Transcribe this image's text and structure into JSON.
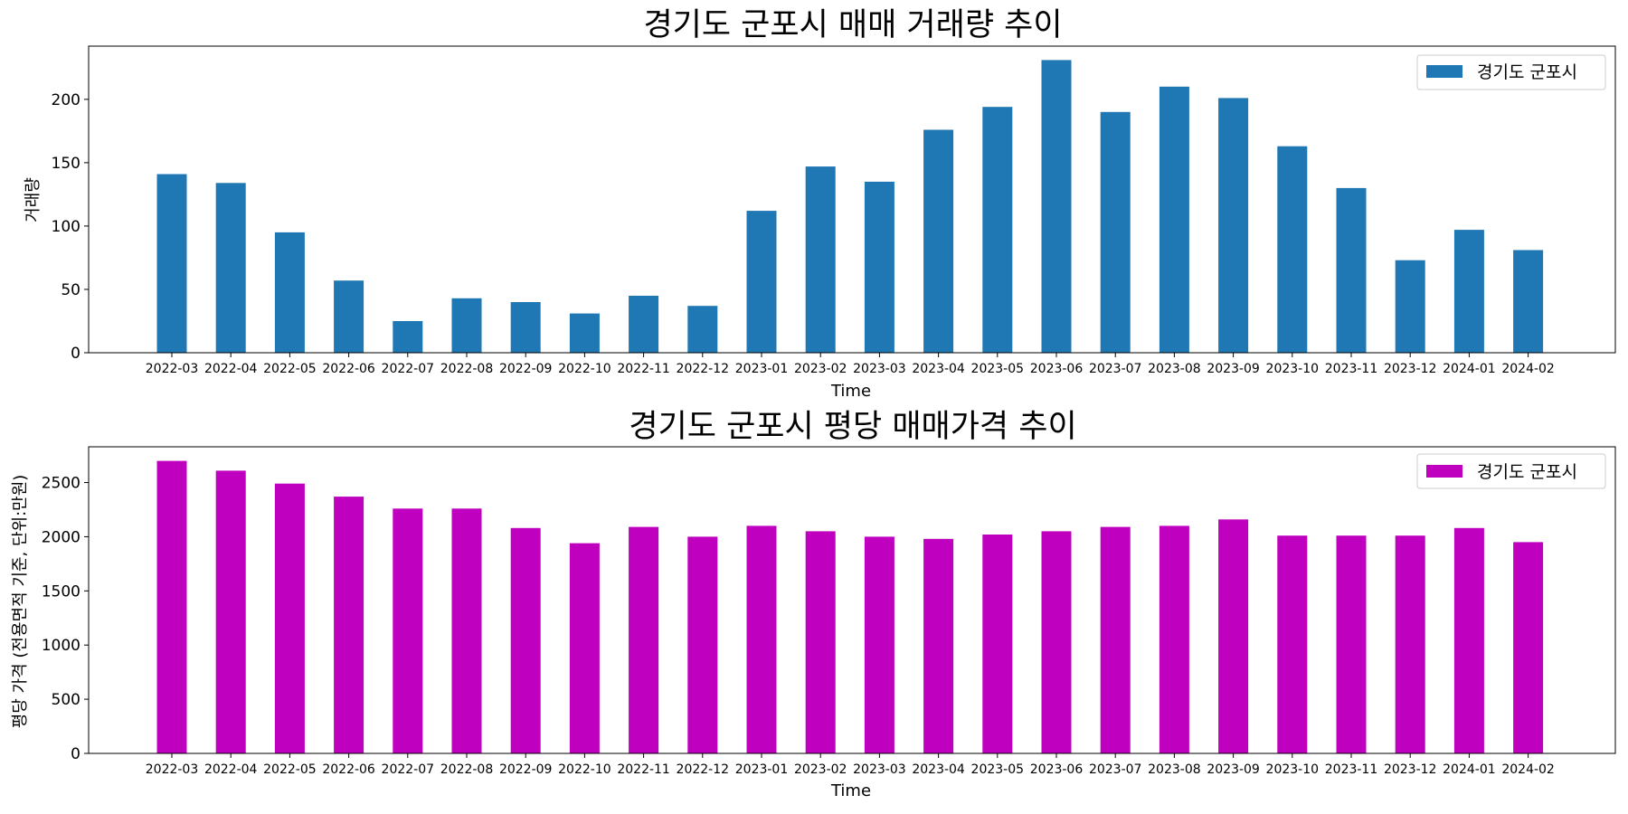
{
  "chart_data": [
    {
      "type": "bar",
      "title": "경기도 군포시 매매 거래량 추이",
      "xlabel": "Time",
      "ylabel": "거래량",
      "ylim": [
        0,
        242
      ],
      "yticks": [
        0,
        50,
        100,
        150,
        200
      ],
      "legend": "top-right",
      "grid": false,
      "categories": [
        "2022-03",
        "2022-04",
        "2022-05",
        "2022-06",
        "2022-07",
        "2022-08",
        "2022-09",
        "2022-10",
        "2022-11",
        "2022-12",
        "2023-01",
        "2023-02",
        "2023-03",
        "2023-04",
        "2023-05",
        "2023-06",
        "2023-07",
        "2023-08",
        "2023-09",
        "2023-10",
        "2023-11",
        "2023-12",
        "2024-01",
        "2024-02"
      ],
      "series": [
        {
          "name": "경기도 군포시",
          "color": "#1f77b4",
          "values": [
            141,
            134,
            95,
            57,
            25,
            43,
            40,
            31,
            45,
            37,
            112,
            147,
            135,
            176,
            194,
            231,
            190,
            210,
            201,
            163,
            130,
            73,
            97,
            81
          ]
        }
      ]
    },
    {
      "type": "bar",
      "title": "경기도 군포시 평당 매매가격 추이",
      "xlabel": "Time",
      "ylabel": "평당 가격 (전용면적 기준, 단위:만원)",
      "ylim": [
        0,
        2830
      ],
      "yticks": [
        0,
        500,
        1000,
        1500,
        2000,
        2500
      ],
      "legend": "top-right",
      "grid": false,
      "categories": [
        "2022-03",
        "2022-04",
        "2022-05",
        "2022-06",
        "2022-07",
        "2022-08",
        "2022-09",
        "2022-10",
        "2022-11",
        "2022-12",
        "2023-01",
        "2023-02",
        "2023-03",
        "2023-04",
        "2023-05",
        "2023-06",
        "2023-07",
        "2023-08",
        "2023-09",
        "2023-10",
        "2023-11",
        "2023-12",
        "2024-01",
        "2024-02"
      ],
      "series": [
        {
          "name": "경기도 군포시",
          "color": "#bf00bf",
          "values": [
            2700,
            2610,
            2490,
            2370,
            2260,
            2260,
            2080,
            1940,
            2090,
            2000,
            2100,
            2050,
            2000,
            1980,
            2020,
            2050,
            2090,
            2100,
            2160,
            2010,
            2010,
            2010,
            2080,
            1950
          ]
        }
      ]
    }
  ]
}
